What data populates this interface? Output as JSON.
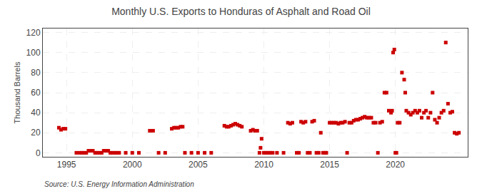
{
  "chart_data": {
    "type": "scatter",
    "title": "Monthly U.S. Exports to Honduras of Asphalt and Road Oil",
    "ylabel": "Thousand Barrels",
    "annotations": [
      "Source: U.S. Energy Information Administration"
    ],
    "color": "#cc0000",
    "marker": "square",
    "grid": true,
    "xlim": [
      1993.2,
      2025.5
    ],
    "ylim": [
      -4,
      124
    ],
    "xticks": [
      1995,
      2000,
      2005,
      2010,
      2015,
      2020
    ],
    "yticks": [
      0,
      20,
      40,
      60,
      80,
      100,
      120
    ],
    "x": [
      1994.42,
      1994.58,
      1994.75,
      1994.92,
      1995.75,
      1996.0,
      1996.17,
      1996.33,
      1996.5,
      1996.67,
      1996.83,
      1997.0,
      1997.17,
      1997.33,
      1997.5,
      1997.67,
      1997.83,
      1998.0,
      1998.17,
      1998.33,
      1998.5,
      1998.67,
      1998.83,
      1999.0,
      1999.5,
      2000.0,
      2000.5,
      2001.33,
      2001.58,
      2002.0,
      2002.5,
      2003.0,
      2003.17,
      2003.33,
      2003.5,
      2003.67,
      2003.83,
      2004.0,
      2004.5,
      2005.0,
      2005.5,
      2006.0,
      2007.0,
      2007.17,
      2007.33,
      2007.5,
      2007.67,
      2007.83,
      2008.0,
      2008.17,
      2008.33,
      2009.0,
      2009.17,
      2009.33,
      2009.5,
      2009.67,
      2009.75,
      2009.83,
      2010.0,
      2010.17,
      2010.33,
      2010.5,
      2010.67,
      2011.0,
      2011.5,
      2011.83,
      2012.0,
      2012.17,
      2012.5,
      2012.67,
      2012.83,
      2013.0,
      2013.17,
      2013.33,
      2013.5,
      2013.67,
      2013.83,
      2014.0,
      2014.17,
      2014.33,
      2014.5,
      2014.67,
      2014.75,
      2015.0,
      2015.17,
      2015.33,
      2015.5,
      2015.67,
      2015.83,
      2016.0,
      2016.17,
      2016.33,
      2016.5,
      2016.67,
      2016.83,
      2017.0,
      2017.17,
      2017.33,
      2017.5,
      2017.67,
      2017.83,
      2018.0,
      2018.17,
      2018.33,
      2018.5,
      2018.67,
      2018.83,
      2019.0,
      2019.17,
      2019.33,
      2019.5,
      2019.67,
      2019.75,
      2019.83,
      2019.92,
      2020.0,
      2020.08,
      2020.17,
      2020.33,
      2020.5,
      2020.67,
      2020.75,
      2020.83,
      2021.0,
      2021.17,
      2021.33,
      2021.5,
      2021.67,
      2021.83,
      2022.0,
      2022.17,
      2022.33,
      2022.5,
      2022.67,
      2022.83,
      2023.0,
      2023.17,
      2023.33,
      2023.5,
      2023.67,
      2023.83,
      2024.0,
      2024.17,
      2024.33,
      2024.5,
      2024.67,
      2024.83
    ],
    "values": [
      25,
      23,
      24,
      24,
      0,
      0,
      0,
      0,
      0,
      2,
      2,
      2,
      0,
      0,
      0,
      0,
      2,
      2,
      2,
      0,
      0,
      0,
      0,
      0,
      0,
      0,
      0,
      22,
      22,
      0,
      0,
      24,
      25,
      25,
      25,
      26,
      26,
      0,
      0,
      0,
      0,
      0,
      27,
      26,
      26,
      27,
      28,
      29,
      28,
      27,
      26,
      22,
      23,
      22,
      22,
      0,
      5,
      14,
      0,
      0,
      0,
      0,
      0,
      0,
      0,
      30,
      29,
      30,
      0,
      0,
      31,
      30,
      31,
      0,
      0,
      31,
      32,
      0,
      0,
      20,
      0,
      0,
      0,
      30,
      30,
      30,
      30,
      29,
      30,
      30,
      31,
      0,
      30,
      30,
      32,
      33,
      33,
      34,
      35,
      36,
      35,
      35,
      35,
      30,
      30,
      0,
      30,
      31,
      60,
      60,
      42,
      40,
      42,
      100,
      103,
      0,
      0,
      30,
      30,
      80,
      73,
      60,
      42,
      40,
      38,
      40,
      42,
      40,
      42,
      35,
      40,
      42,
      35,
      40,
      60,
      33,
      30,
      35,
      40,
      42,
      110,
      49,
      40,
      41,
      20,
      19,
      20
    ]
  }
}
